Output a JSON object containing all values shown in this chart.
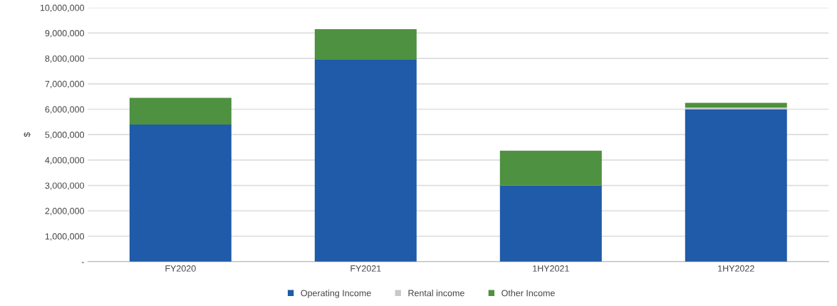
{
  "chart_data": {
    "type": "bar",
    "stacked": true,
    "ylabel": "$",
    "categories": [
      "FY2020",
      "FY2021",
      "1HY2021",
      "1HY2022"
    ],
    "series": [
      {
        "name": "Operating Income",
        "color": "#1f5ba8",
        "values": [
          5400000,
          7950000,
          3000000,
          6000000
        ]
      },
      {
        "name": "Rental income",
        "color": "#c8c8c8",
        "values": [
          null,
          null,
          null,
          70000
        ]
      },
      {
        "name": "Other Income",
        "color": "#4e9140",
        "values": [
          1050000,
          1200000,
          1370000,
          180000
        ]
      }
    ],
    "ylim": [
      0,
      10000000
    ],
    "yticks": [
      {
        "value": 0,
        "label": "-"
      },
      {
        "value": 1000000,
        "label": "1,000,000"
      },
      {
        "value": 2000000,
        "label": "2,000,000"
      },
      {
        "value": 3000000,
        "label": "3,000,000"
      },
      {
        "value": 4000000,
        "label": "4,000,000"
      },
      {
        "value": 5000000,
        "label": "5,000,000"
      },
      {
        "value": 6000000,
        "label": "6,000,000"
      },
      {
        "value": 7000000,
        "label": "7,000,000"
      },
      {
        "value": 8000000,
        "label": "8,000,000"
      },
      {
        "value": 9000000,
        "label": "9,000,000"
      },
      {
        "value": 10000000,
        "label": "10,000,000"
      }
    ],
    "grid": "y",
    "legend": "bottom",
    "marker": "square"
  }
}
